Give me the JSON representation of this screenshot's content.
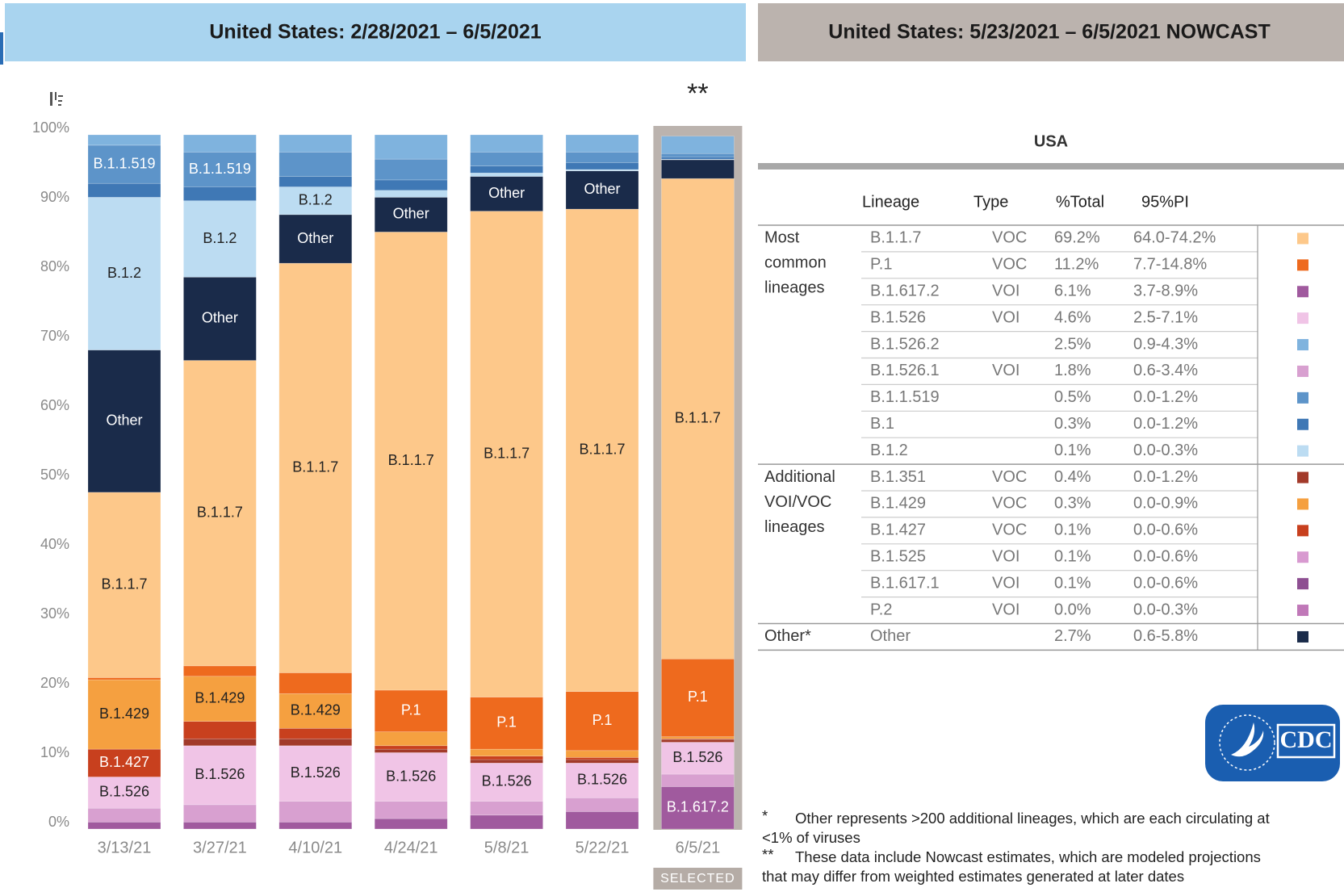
{
  "chart_data": {
    "type": "stacked_bar",
    "title": "United States: 2/28/2021 – 6/5/2021",
    "categories": [
      "3/13/21",
      "3/27/21",
      "4/10/21",
      "4/24/21",
      "5/8/21",
      "5/22/21",
      "6/5/21"
    ],
    "selected_annotation": "**",
    "selected_label": "SELECTED",
    "ylim": [
      0,
      100
    ],
    "yticks": [
      {
        "value": 0,
        "label": "0%"
      },
      {
        "value": 10,
        "label": "10%"
      },
      {
        "value": 20,
        "label": "20%"
      },
      {
        "value": 30,
        "label": "30%"
      },
      {
        "value": 40,
        "label": "40%"
      },
      {
        "value": 50,
        "label": "50%"
      },
      {
        "value": 60,
        "label": "60%"
      },
      {
        "value": 70,
        "label": "70%"
      },
      {
        "value": 80,
        "label": "80%"
      },
      {
        "value": 90,
        "label": "90%"
      },
      {
        "value": 100,
        "label": "100%"
      }
    ],
    "series": [
      {
        "name": "B.1.617.2",
        "color": "#a05a9e",
        "values": [
          1,
          1,
          1,
          1.5,
          2,
          2.5,
          6.1
        ]
      },
      {
        "name": "B.1.526.1",
        "color": "#d8a0d0",
        "values": [
          2,
          2.5,
          3,
          2.5,
          2,
          2,
          1.8
        ]
      },
      {
        "name": "B.1.526",
        "color": "#f0c4e6",
        "values": [
          4.5,
          8.5,
          8,
          7,
          5.5,
          5,
          4.6
        ]
      },
      {
        "name": "B.1.351",
        "color": "#a23a2a",
        "values": [
          0,
          1,
          1,
          0.5,
          0.5,
          0.5,
          0.4
        ]
      },
      {
        "name": "B.1.427",
        "color": "#c8401e",
        "values": [
          4,
          2.5,
          1.5,
          0.5,
          0.5,
          0.3,
          0.1
        ]
      },
      {
        "name": "B.1.429",
        "color": "#f5a040",
        "values": [
          10,
          6.5,
          5,
          2,
          1,
          1,
          0.3
        ]
      },
      {
        "name": "P.1",
        "color": "#ee6a1e",
        "values": [
          0.3,
          1.5,
          3,
          6,
          7.5,
          8.5,
          11.2
        ]
      },
      {
        "name": "B.1.1.7",
        "color": "#fdc88a",
        "values": [
          26.7,
          44,
          59,
          66,
          70,
          69.5,
          69.2
        ]
      },
      {
        "name": "Other",
        "color": "#1a2b4a",
        "values": [
          20.5,
          12,
          7,
          5,
          5,
          5.5,
          2.7
        ]
      },
      {
        "name": "B.1.2",
        "color": "#bcdcf2",
        "values": [
          22,
          11,
          4,
          1,
          0.5,
          0.2,
          0.1
        ]
      },
      {
        "name": "B.1",
        "color": "#3f78b5",
        "values": [
          2,
          2,
          1.5,
          1.5,
          1,
          1,
          0.3
        ]
      },
      {
        "name": "B.1.1.519",
        "color": "#5d94c9",
        "values": [
          5.5,
          5,
          3.5,
          3,
          2,
          1.5,
          0.5
        ]
      },
      {
        "name": "B.1.526.2",
        "color": "#7fb3de",
        "values": [
          1.5,
          2.5,
          2.5,
          3.5,
          2.5,
          2.5,
          2.5
        ]
      }
    ]
  },
  "nowcast": {
    "title": "United States: 5/23/2021 – 6/5/2021 NOWCAST",
    "region": "USA",
    "columns": [
      "Lineage",
      "Type",
      "%Total",
      "95%PI"
    ],
    "groups": [
      {
        "label": [
          "Most",
          "common",
          "lineages"
        ],
        "rows": [
          {
            "lineage": "B.1.1.7",
            "type": "VOC",
            "total": "69.2%",
            "pi": "64.0-74.2%",
            "color": "#fdc88a"
          },
          {
            "lineage": "P.1",
            "type": "VOC",
            "total": "11.2%",
            "pi": "7.7-14.8%",
            "color": "#ee6a1e"
          },
          {
            "lineage": "B.1.617.2",
            "type": "VOI",
            "total": "6.1%",
            "pi": "3.7-8.9%",
            "color": "#a05a9e"
          },
          {
            "lineage": "B.1.526",
            "type": "VOI",
            "total": "4.6%",
            "pi": "2.5-7.1%",
            "color": "#f0c4e6"
          },
          {
            "lineage": "B.1.526.2",
            "total": "2.5%",
            "pi": "0.9-4.3%",
            "color": "#7fb3de"
          },
          {
            "lineage": "B.1.526.1",
            "type": "VOI",
            "total": "1.8%",
            "pi": "0.6-3.4%",
            "color": "#d8a0d0"
          },
          {
            "lineage": "B.1.1.519",
            "total": "0.5%",
            "pi": "0.0-1.2%",
            "color": "#5d94c9"
          },
          {
            "lineage": "B.1",
            "total": "0.3%",
            "pi": "0.0-1.2%",
            "color": "#3f78b5"
          },
          {
            "lineage": "B.1.2",
            "total": "0.1%",
            "pi": "0.0-0.3%",
            "color": "#bcdcf2"
          }
        ]
      },
      {
        "label": [
          "Additional",
          "VOI/VOC",
          "lineages"
        ],
        "rows": [
          {
            "lineage": "B.1.351",
            "type": "VOC",
            "total": "0.4%",
            "pi": "0.0-1.2%",
            "color": "#a23a2a"
          },
          {
            "lineage": "B.1.429",
            "type": "VOC",
            "total": "0.3%",
            "pi": "0.0-0.9%",
            "color": "#f5a040"
          },
          {
            "lineage": "B.1.427",
            "type": "VOC",
            "total": "0.1%",
            "pi": "0.0-0.6%",
            "color": "#c8401e"
          },
          {
            "lineage": "B.1.525",
            "type": "VOI",
            "total": "0.1%",
            "pi": "0.0-0.6%",
            "color": "#d89ad0"
          },
          {
            "lineage": "B.1.617.1",
            "type": "VOI",
            "total": "0.1%",
            "pi": "0.0-0.6%",
            "color": "#8e4f92"
          },
          {
            "lineage": "P.2",
            "type": "VOI",
            "total": "0.0%",
            "pi": "0.0-0.3%",
            "color": "#c078b8"
          }
        ]
      },
      {
        "label": [
          "Other*"
        ],
        "rows": [
          {
            "lineage": "Other",
            "total": "2.7%",
            "pi": "0.6-5.8%",
            "color": "#1a2b4a"
          }
        ]
      }
    ],
    "logo": "CDC",
    "footnotes": [
      {
        "marker": "*",
        "lines": [
          "Other represents >200 additional lineages, which are each circulating at",
          "<1% of viruses"
        ]
      },
      {
        "marker": "**",
        "lines": [
          "These data include Nowcast estimates, which are modeled projections",
          "that may differ from weighted estimates generated at later dates"
        ]
      }
    ]
  }
}
